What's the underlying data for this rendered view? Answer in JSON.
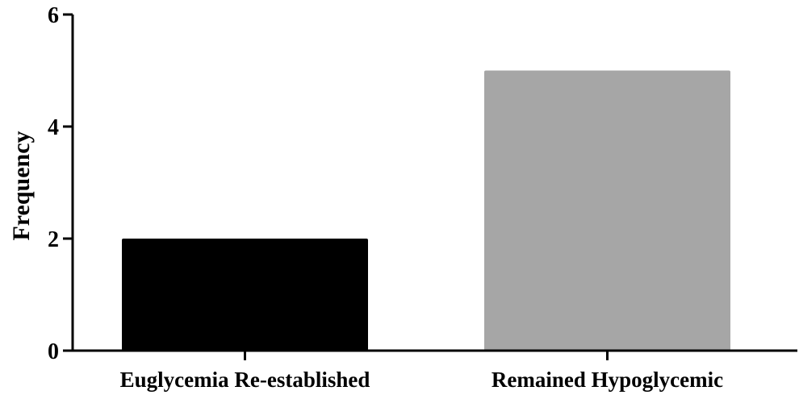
{
  "chart_data": {
    "type": "bar",
    "categories": [
      "Euglycemia Re-established",
      "Remained Hypoglycemic"
    ],
    "values": [
      2,
      5
    ],
    "colors": [
      "#000000",
      "#a6a6a6"
    ],
    "xlabel": "",
    "ylabel": "Frequency",
    "ylim": [
      0,
      6
    ],
    "yticks": [
      0,
      2,
      4,
      6
    ],
    "ytick_labels": [
      "0",
      "2",
      "4",
      "6"
    ],
    "grid": false,
    "legend": "none"
  }
}
